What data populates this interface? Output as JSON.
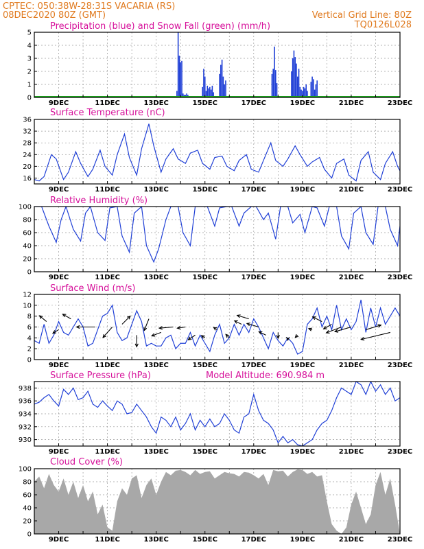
{
  "header": {
    "line1": "CPTEC:   050:38W-28:31S   VACARIA (RS)",
    "line2": "08DEC2020 80Z (GMT)",
    "grid_note": "Vertical Grid Line: 80Z",
    "code": "TQ0126L028"
  },
  "colors": {
    "header": "#e07a1f",
    "title": "#d6109a",
    "line": "#1f3fd6",
    "snow": "#19a019",
    "cloud": "#a8a8a8",
    "arrow": "#000000",
    "grid": "#9a9a9a"
  },
  "chart_data": [
    {
      "id": "precip",
      "type": "bar",
      "title": "Precipitation (blue) and Snow Fall (green) (mm/h)",
      "ylim": [
        0,
        5
      ],
      "yticks": [
        0,
        1,
        2,
        3,
        4,
        5
      ],
      "x_range": [
        8.0,
        23.0
      ],
      "xticks": [
        "9DEC",
        "11DEC",
        "13DEC",
        "15DEC",
        "17DEC",
        "19DEC",
        "21DEC",
        "23DEC"
      ],
      "series": [
        {
          "name": "Precipitation",
          "x": [
            13.85,
            13.9,
            13.95,
            14.0,
            14.05,
            14.1,
            14.15,
            14.2,
            14.25,
            14.3,
            14.35,
            14.4,
            14.45,
            14.5,
            14.55,
            14.6,
            14.9,
            14.95,
            15.0,
            15.05,
            15.1,
            15.15,
            15.2,
            15.25,
            15.3,
            15.35,
            15.6,
            15.65,
            15.7,
            15.75,
            15.8,
            15.85,
            17.75,
            17.8,
            17.85,
            17.9,
            17.95,
            18.55,
            18.6,
            18.65,
            18.7,
            18.75,
            18.8,
            18.85,
            18.9,
            18.95,
            19.0,
            19.05,
            19.1,
            19.15,
            19.2,
            19.35,
            19.4,
            19.45,
            19.5,
            19.55,
            19.6
          ],
          "values": [
            0.5,
            5.0,
            3.2,
            2.7,
            2.8,
            0.3,
            0.2,
            0.2,
            0.3,
            0.2,
            0.1,
            0.1,
            0.1,
            0.1,
            0.1,
            0.1,
            0.8,
            2.2,
            1.6,
            0.5,
            0.9,
            0.7,
            0.8,
            0.6,
            0.9,
            0.4,
            1.8,
            2.5,
            2.9,
            1.6,
            1.0,
            1.3,
            1.8,
            2.2,
            3.9,
            2.1,
            1.1,
            2.0,
            3.0,
            3.6,
            3.1,
            2.6,
            1.6,
            2.2,
            0.8,
            0.6,
            0.5,
            0.8,
            0.7,
            1.0,
            0.5,
            1.2,
            1.6,
            1.4,
            0.6,
            1.0,
            1.3
          ]
        },
        {
          "name": "Snow Fall",
          "x": [
            8.0,
            23.0
          ],
          "values": [
            0.0,
            0.0
          ]
        }
      ]
    },
    {
      "id": "temp",
      "type": "line",
      "title": "Surface Temperature (nC)",
      "ylim": [
        14,
        36
      ],
      "yticks": [
        16,
        20,
        24,
        28,
        32,
        36
      ],
      "x_range": [
        8.0,
        23.0
      ],
      "xticks": [
        "9DEC",
        "11DEC",
        "13DEC",
        "15DEC",
        "17DEC",
        "19DEC",
        "21DEC",
        "23DEC"
      ],
      "x": [
        8.0,
        8.2,
        8.4,
        8.7,
        8.9,
        9.2,
        9.4,
        9.7,
        9.9,
        10.2,
        10.4,
        10.7,
        10.9,
        11.2,
        11.4,
        11.7,
        11.9,
        12.2,
        12.4,
        12.7,
        12.9,
        13.2,
        13.4,
        13.7,
        13.9,
        14.2,
        14.4,
        14.7,
        14.9,
        15.2,
        15.4,
        15.7,
        15.9,
        16.2,
        16.4,
        16.7,
        16.9,
        17.2,
        17.4,
        17.7,
        17.9,
        18.2,
        18.4,
        18.7,
        18.9,
        19.2,
        19.4,
        19.7,
        19.9,
        20.2,
        20.4,
        20.7,
        20.9,
        21.2,
        21.4,
        21.7,
        21.9,
        22.2,
        22.4,
        22.7,
        22.9,
        23.0
      ],
      "values": [
        15.5,
        15.0,
        16.5,
        24.0,
        22.5,
        15.5,
        18.0,
        25.0,
        21.0,
        16.5,
        19.0,
        25.5,
        20.0,
        17.0,
        24.0,
        31.0,
        23.0,
        17.0,
        26.0,
        34.5,
        27.0,
        18.0,
        22.5,
        26.0,
        22.5,
        21.0,
        24.5,
        25.5,
        21.0,
        19.0,
        23.0,
        23.5,
        20.0,
        18.5,
        22.0,
        24.0,
        19.0,
        18.0,
        22.0,
        28.0,
        22.0,
        20.0,
        22.5,
        27.0,
        24.0,
        20.0,
        21.5,
        23.0,
        19.0,
        16.0,
        21.0,
        22.5,
        17.0,
        15.0,
        22.0,
        25.0,
        18.0,
        15.5,
        21.0,
        25.0,
        20.0,
        18.5
      ]
    },
    {
      "id": "rh",
      "type": "line",
      "title": "Relative Humidity (%)",
      "ylim": [
        0,
        100
      ],
      "yticks": [
        0,
        20,
        40,
        60,
        80,
        100
      ],
      "x_range": [
        8.0,
        23.0
      ],
      "xticks": [
        "9DEC",
        "11DEC",
        "13DEC",
        "15DEC",
        "17DEC",
        "19DEC",
        "21DEC",
        "23DEC"
      ],
      "x": [
        8.0,
        8.3,
        8.6,
        8.9,
        9.1,
        9.3,
        9.6,
        9.9,
        10.1,
        10.3,
        10.6,
        10.9,
        11.1,
        11.4,
        11.6,
        11.9,
        12.1,
        12.4,
        12.6,
        12.9,
        13.1,
        13.4,
        13.6,
        13.9,
        14.1,
        14.4,
        14.6,
        14.9,
        15.1,
        15.4,
        15.6,
        15.9,
        16.1,
        16.4,
        16.6,
        16.9,
        17.1,
        17.4,
        17.6,
        17.9,
        18.1,
        18.4,
        18.6,
        18.9,
        19.1,
        19.4,
        19.6,
        19.9,
        20.1,
        20.4,
        20.6,
        20.9,
        21.1,
        21.4,
        21.6,
        21.9,
        22.1,
        22.4,
        22.6,
        22.9,
        23.0
      ],
      "values": [
        100,
        100,
        70,
        45,
        80,
        100,
        65,
        47,
        90,
        100,
        60,
        48,
        98,
        100,
        55,
        30,
        90,
        100,
        40,
        15,
        35,
        80,
        100,
        100,
        60,
        40,
        100,
        100,
        100,
        70,
        98,
        100,
        100,
        70,
        90,
        100,
        100,
        80,
        90,
        50,
        100,
        100,
        75,
        88,
        60,
        100,
        98,
        70,
        100,
        100,
        55,
        35,
        90,
        100,
        60,
        42,
        100,
        100,
        65,
        40,
        70
      ]
    },
    {
      "id": "wind",
      "type": "line",
      "title": "Surface Wind (m/s)",
      "ylim": [
        0,
        12
      ],
      "yticks": [
        0,
        2,
        4,
        6,
        8,
        10,
        12
      ],
      "x_range": [
        8.0,
        23.0
      ],
      "xticks": [
        "9DEC",
        "11DEC",
        "13DEC",
        "15DEC",
        "17DEC",
        "19DEC",
        "21DEC",
        "23DEC"
      ],
      "x": [
        8.0,
        8.2,
        8.4,
        8.6,
        8.8,
        9.0,
        9.2,
        9.4,
        9.6,
        9.8,
        10.0,
        10.2,
        10.4,
        10.6,
        10.8,
        11.0,
        11.2,
        11.4,
        11.6,
        11.8,
        12.0,
        12.2,
        12.4,
        12.6,
        12.8,
        13.0,
        13.2,
        13.4,
        13.6,
        13.8,
        14.0,
        14.2,
        14.4,
        14.6,
        14.8,
        15.0,
        15.2,
        15.4,
        15.6,
        15.8,
        16.0,
        16.2,
        16.4,
        16.6,
        16.8,
        17.0,
        17.2,
        17.4,
        17.6,
        17.8,
        18.0,
        18.2,
        18.4,
        18.6,
        18.8,
        19.0,
        19.2,
        19.4,
        19.6,
        19.8,
        20.0,
        20.2,
        20.4,
        20.6,
        20.8,
        21.0,
        21.2,
        21.4,
        21.6,
        21.8,
        22.0,
        22.2,
        22.4,
        22.6,
        22.8,
        23.0
      ],
      "values": [
        3.5,
        3.0,
        6.5,
        3.0,
        4.5,
        7.0,
        5.0,
        4.5,
        6.0,
        7.5,
        6.0,
        2.5,
        3.0,
        5.5,
        8.0,
        8.5,
        10.0,
        5.0,
        3.5,
        4.0,
        6.5,
        9.0,
        7.0,
        2.5,
        3.0,
        2.5,
        2.5,
        4.0,
        4.5,
        2.0,
        3.0,
        3.0,
        5.0,
        2.5,
        4.5,
        3.0,
        1.5,
        4.5,
        6.5,
        3.0,
        4.0,
        6.5,
        4.5,
        6.5,
        5.0,
        7.5,
        6.0,
        4.0,
        2.0,
        5.0,
        3.5,
        2.5,
        4.0,
        3.0,
        1.0,
        1.5,
        6.5,
        7.5,
        9.5,
        6.0,
        8.0,
        5.5,
        10.0,
        5.5,
        7.5,
        5.5,
        7.0,
        11.0,
        5.0,
        9.5,
        6.0,
        9.5,
        6.5,
        8.0,
        9.5,
        8.0
      ],
      "arrows": {
        "x": [
          8.5,
          9.0,
          9.5,
          10.5,
          11.2,
          11.6,
          12.2,
          12.7,
          13.2,
          13.7,
          14.2,
          14.6,
          15.0,
          15.5,
          16.0,
          16.5,
          16.8,
          17.2,
          17.5,
          18.0,
          18.4,
          18.8,
          19.4,
          19.8,
          20.2,
          20.6,
          21.0,
          21.6,
          22.6
        ],
        "y": [
          7.0,
          5.5,
          7.5,
          6.0,
          6.0,
          6.5,
          4.5,
          7.5,
          5.0,
          6.0,
          6.0,
          4.5,
          4.0,
          5.5,
          4.0,
          6.5,
          7.5,
          6.0,
          4.5,
          5.0,
          4.0,
          4.5,
          5.5,
          7.0,
          6.5,
          6.0,
          6.0,
          5.5,
          5.0
        ],
        "u": [
          -3.0,
          -2.5,
          -3.5,
          -8.0,
          -4.0,
          3.5,
          0.0,
          -2.0,
          -4.0,
          -6.0,
          -3.5,
          -3.0,
          -1.5,
          -1.5,
          -1.5,
          -3.0,
          -5.0,
          -5.0,
          -3.0,
          0.0,
          0.0,
          -1.0,
          -1.5,
          -4.0,
          -3.5,
          -6.5,
          -7.0,
          6.5,
          -12.5
        ],
        "v": [
          2.5,
          -1.5,
          2.0,
          0.0,
          -4.5,
          3.5,
          -5.0,
          -5.0,
          -1.5,
          -0.5,
          -0.5,
          -2.0,
          1.0,
          1.0,
          1.5,
          1.5,
          1.5,
          1.5,
          1.5,
          -2.5,
          -1.0,
          -1.0,
          0.5,
          2.0,
          -2.0,
          -2.5,
          -2.0,
          2.0,
          -3.0
        ]
      }
    },
    {
      "id": "pressure",
      "type": "line",
      "title": "Surface Pressure (hPa)",
      "subtitle": "Model Altitude: 690.984 m",
      "ylim": [
        929,
        939
      ],
      "yticks": [
        930,
        932,
        934,
        936,
        938
      ],
      "x_range": [
        8.0,
        23.0
      ],
      "xticks": [
        "9DEC",
        "11DEC",
        "13DEC",
        "15DEC",
        "17DEC",
        "19DEC",
        "21DEC",
        "23DEC"
      ],
      "x": [
        8.0,
        8.2,
        8.4,
        8.6,
        8.8,
        9.0,
        9.2,
        9.4,
        9.6,
        9.8,
        10.0,
        10.2,
        10.4,
        10.6,
        10.8,
        11.0,
        11.2,
        11.4,
        11.6,
        11.8,
        12.0,
        12.2,
        12.4,
        12.6,
        12.8,
        13.0,
        13.2,
        13.4,
        13.6,
        13.8,
        14.0,
        14.2,
        14.4,
        14.6,
        14.8,
        15.0,
        15.2,
        15.4,
        15.6,
        15.8,
        16.0,
        16.2,
        16.4,
        16.6,
        16.8,
        17.0,
        17.2,
        17.4,
        17.6,
        17.8,
        18.0,
        18.2,
        18.4,
        18.6,
        18.8,
        19.0,
        19.2,
        19.4,
        19.6,
        19.8,
        20.0,
        20.2,
        20.4,
        20.6,
        20.8,
        21.0,
        21.2,
        21.4,
        21.6,
        21.8,
        22.0,
        22.2,
        22.4,
        22.6,
        22.8,
        23.0
      ],
      "values": [
        935.5,
        935.8,
        936.5,
        937.0,
        936.0,
        935.2,
        937.8,
        937.0,
        938.0,
        936.2,
        936.5,
        937.5,
        935.5,
        935.0,
        936.0,
        935.2,
        934.5,
        936.0,
        935.5,
        934.0,
        934.2,
        935.5,
        934.5,
        933.5,
        932.0,
        931.0,
        933.5,
        933.0,
        932.0,
        933.5,
        931.5,
        932.5,
        934.0,
        931.5,
        933.0,
        932.0,
        933.2,
        932.0,
        932.5,
        934.0,
        933.0,
        931.5,
        931.0,
        933.5,
        934.0,
        937.0,
        934.5,
        933.0,
        932.5,
        931.5,
        929.5,
        930.5,
        929.5,
        930.0,
        929.2,
        929.0,
        929.5,
        930.0,
        931.5,
        932.5,
        933.0,
        934.5,
        936.5,
        938.0,
        937.5,
        937.0,
        939.0,
        938.5,
        937.0,
        939.0,
        937.5,
        938.5,
        937.0,
        938.0,
        936.0,
        936.5
      ]
    },
    {
      "id": "cloud",
      "type": "area",
      "title": "Cloud Cover (%)",
      "ylim": [
        0,
        100
      ],
      "yticks": [
        0,
        20,
        40,
        60,
        80,
        100
      ],
      "x_range": [
        8.0,
        23.0
      ],
      "xticks": [
        "9DEC",
        "11DEC",
        "13DEC",
        "15DEC",
        "17DEC",
        "19DEC",
        "21DEC",
        "23DEC"
      ],
      "x": [
        8.0,
        8.2,
        8.4,
        8.6,
        8.8,
        9.0,
        9.2,
        9.4,
        9.6,
        9.8,
        10.0,
        10.2,
        10.4,
        10.6,
        10.8,
        11.0,
        11.2,
        11.4,
        11.6,
        11.8,
        12.0,
        12.2,
        12.4,
        12.6,
        12.8,
        13.0,
        13.2,
        13.4,
        13.6,
        13.8,
        14.0,
        14.2,
        14.4,
        14.6,
        14.8,
        15.0,
        15.2,
        15.4,
        15.6,
        15.8,
        16.0,
        16.2,
        16.4,
        16.6,
        16.8,
        17.0,
        17.2,
        17.4,
        17.6,
        17.8,
        18.0,
        18.2,
        18.4,
        18.6,
        18.8,
        19.0,
        19.2,
        19.4,
        19.6,
        19.8,
        20.0,
        20.2,
        20.4,
        20.6,
        20.8,
        21.0,
        21.2,
        21.4,
        21.6,
        21.8,
        22.0,
        22.2,
        22.4,
        22.6,
        22.8,
        23.0
      ],
      "values": [
        80,
        88,
        70,
        92,
        75,
        65,
        85,
        60,
        80,
        55,
        75,
        50,
        65,
        30,
        45,
        10,
        5,
        50,
        70,
        60,
        85,
        90,
        55,
        75,
        85,
        60,
        80,
        95,
        90,
        97,
        98,
        95,
        90,
        98,
        92,
        95,
        96,
        85,
        90,
        95,
        93,
        92,
        88,
        95,
        94,
        90,
        85,
        92,
        75,
        98,
        96,
        97,
        88,
        95,
        99,
        98,
        92,
        95,
        88,
        90,
        50,
        15,
        5,
        0,
        10,
        45,
        65,
        40,
        15,
        30,
        75,
        95,
        60,
        85,
        45,
        0
      ]
    }
  ]
}
